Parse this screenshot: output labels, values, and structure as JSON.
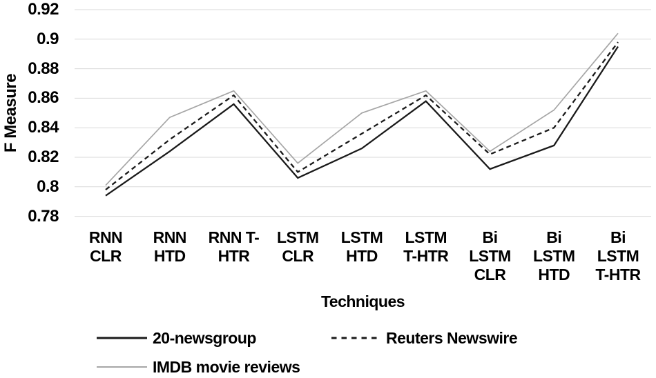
{
  "chart_data": {
    "type": "line",
    "title": "",
    "xlabel": "Techniques",
    "ylabel": "F Measure",
    "ylim": [
      0.78,
      0.92
    ],
    "ytick_step": 0.02,
    "ytick_labels": [
      "0.92",
      "0.9",
      "0.88",
      "0.86",
      "0.84",
      "0.82",
      "0.8",
      "0.78"
    ],
    "grid": true,
    "legend_position": "bottom-left",
    "categories": [
      "RNN\nCLR",
      "RNN\nHTD",
      "RNN T-\nHTR",
      "LSTM\nCLR",
      "LSTM\nHTD",
      "LSTM\nT-HTR",
      "Bi\nLSTM\nCLR",
      "Bi\nLSTM\nHTD",
      "Bi\nLSTM\nT-HTR"
    ],
    "series": [
      {
        "name": "20-newsgroup",
        "line_style": "solid",
        "color": "#1a1a1a",
        "values": [
          0.794,
          0.824,
          0.856,
          0.806,
          0.826,
          0.858,
          0.812,
          0.828,
          0.895
        ]
      },
      {
        "name": "Reuters Newswire",
        "line_style": "dashed",
        "color": "#1a1a1a",
        "values": [
          0.798,
          0.832,
          0.862,
          0.81,
          0.836,
          0.862,
          0.822,
          0.84,
          0.898
        ]
      },
      {
        "name": "IMDB movie reviews",
        "line_style": "solid",
        "color": "#a6a6a6",
        "values": [
          0.801,
          0.847,
          0.865,
          0.816,
          0.85,
          0.865,
          0.824,
          0.852,
          0.904
        ]
      }
    ],
    "gridline_color": "#d9d9d9",
    "background_color": "#ffffff"
  }
}
